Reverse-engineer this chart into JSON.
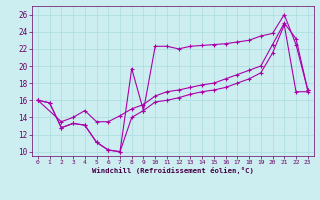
{
  "xlabel": "Windchill (Refroidissement éolien,°C)",
  "background_color": "#cdeef0",
  "grid_color": "#aadde0",
  "line_color": "#aa00aa",
  "xlim": [
    -0.5,
    23.5
  ],
  "ylim": [
    9.5,
    27.0
  ],
  "xticks": [
    0,
    1,
    2,
    3,
    4,
    5,
    6,
    7,
    8,
    9,
    10,
    11,
    12,
    13,
    14,
    15,
    16,
    17,
    18,
    19,
    20,
    21,
    22,
    23
  ],
  "yticks": [
    10,
    12,
    14,
    16,
    18,
    20,
    22,
    24,
    26
  ],
  "line1_x": [
    0,
    1,
    2,
    3,
    4,
    5,
    6,
    7,
    8,
    9,
    10,
    11,
    12,
    13,
    14,
    15,
    16,
    17,
    18,
    19,
    20,
    21,
    22,
    23
  ],
  "line1_y": [
    16.0,
    15.7,
    12.8,
    13.3,
    13.1,
    11.1,
    10.2,
    10.0,
    19.7,
    14.8,
    22.3,
    22.3,
    22.0,
    22.3,
    22.4,
    22.5,
    22.6,
    22.8,
    23.0,
    23.5,
    23.8,
    26.0,
    22.5,
    17.2
  ],
  "line2_x": [
    0,
    1,
    2,
    3,
    4,
    5,
    6,
    7,
    8,
    9,
    10,
    11,
    12,
    13,
    14,
    15,
    16,
    17,
    18,
    19,
    20,
    21,
    22,
    23
  ],
  "line2_y": [
    16.0,
    15.7,
    12.8,
    13.3,
    13.1,
    11.1,
    10.2,
    10.0,
    14.0,
    14.8,
    15.8,
    16.0,
    16.3,
    16.7,
    17.0,
    17.2,
    17.5,
    18.0,
    18.5,
    19.2,
    21.5,
    24.8,
    17.0,
    17.0
  ],
  "line3_x": [
    0,
    2,
    3,
    4,
    5,
    6,
    7,
    8,
    9,
    10,
    11,
    12,
    13,
    14,
    15,
    16,
    17,
    18,
    19,
    20,
    21,
    22,
    23
  ],
  "line3_y": [
    16.0,
    13.5,
    14.0,
    14.8,
    13.5,
    13.5,
    14.2,
    15.0,
    15.5,
    16.5,
    17.0,
    17.2,
    17.5,
    17.8,
    18.0,
    18.5,
    19.0,
    19.5,
    20.0,
    22.5,
    25.0,
    23.2,
    17.2
  ]
}
